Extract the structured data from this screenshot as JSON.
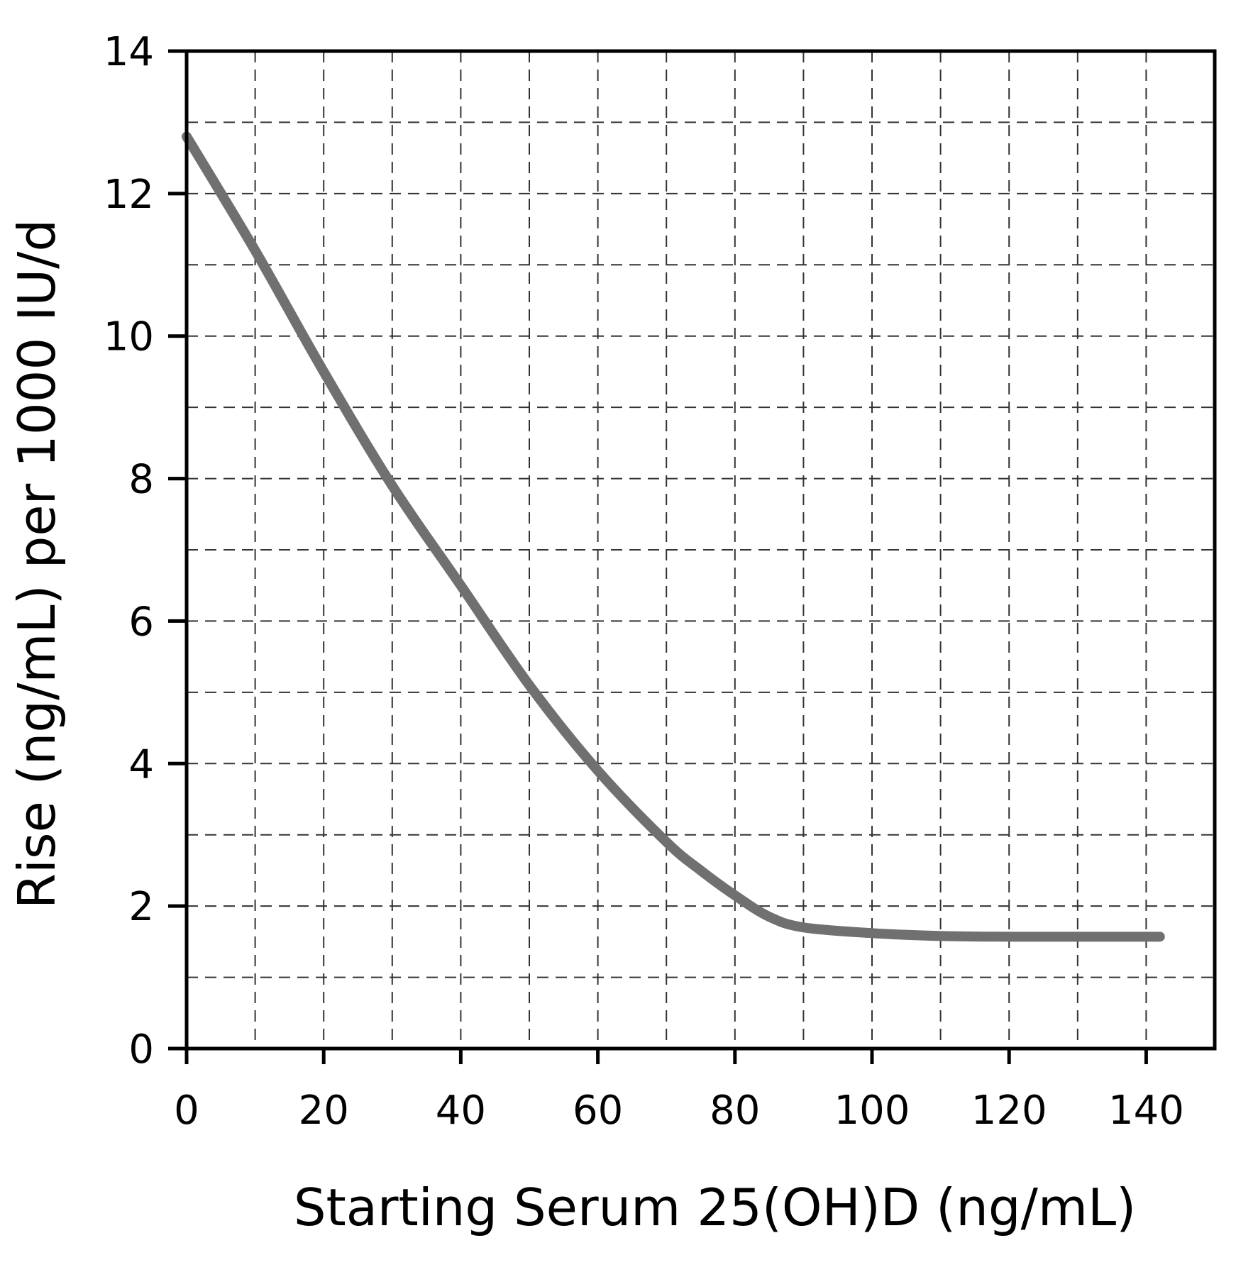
{
  "chart_data": {
    "type": "line",
    "title": "",
    "xlabel": "Starting Serum 25(OH)D (ng/mL)",
    "ylabel": "Rise (ng/mL) per 1000 IU/d",
    "xlim": [
      0,
      150
    ],
    "ylim": [
      0,
      14
    ],
    "x_ticks": [
      0,
      20,
      40,
      60,
      80,
      100,
      120,
      140
    ],
    "y_ticks": [
      0,
      2,
      4,
      6,
      8,
      10,
      12,
      14
    ],
    "x_tick_labels": [
      "0",
      "20",
      "40",
      "60",
      "80",
      "100",
      "120",
      "140"
    ],
    "y_tick_labels": [
      "0",
      "2",
      "4",
      "6",
      "8",
      "10",
      "12",
      "14"
    ],
    "x_grid_step": 10,
    "y_grid_step": 1,
    "grid": true,
    "grid_style": "dashed",
    "line_color": "#707070",
    "series": [
      {
        "x": [
          0,
          10,
          20,
          30,
          40,
          50,
          60,
          70,
          75,
          80,
          85,
          90,
          100,
          110,
          120,
          130,
          142
        ],
        "y": [
          12.8,
          11.2,
          9.5,
          7.9,
          6.5,
          5.1,
          3.9,
          2.9,
          2.5,
          2.15,
          1.85,
          1.7,
          1.62,
          1.58,
          1.57,
          1.57,
          1.57
        ]
      }
    ]
  }
}
